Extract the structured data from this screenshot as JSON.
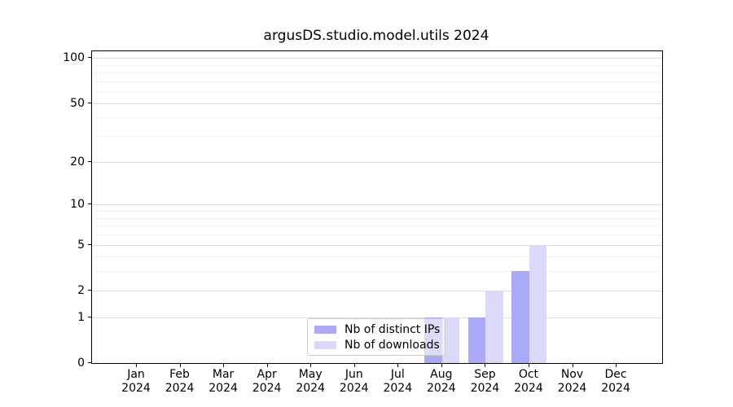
{
  "chart_data": {
    "type": "bar",
    "title": "argusDS.studio.model.utils 2024",
    "categories": [
      "Jan",
      "Feb",
      "Mar",
      "Apr",
      "May",
      "Jun",
      "Jul",
      "Aug",
      "Sep",
      "Oct",
      "Nov",
      "Dec"
    ],
    "x_year_label": "2024",
    "series": [
      {
        "name": "Nb of distinct IPs",
        "color": "#a9a9f7",
        "values": [
          0,
          0,
          0,
          0,
          0,
          0,
          0,
          1,
          1,
          3,
          0,
          0
        ]
      },
      {
        "name": "Nb of downloads",
        "color": "#dadaf8",
        "values": [
          0,
          0,
          0,
          0,
          0,
          0,
          0,
          1,
          2,
          5,
          0,
          0
        ]
      }
    ],
    "yscale": "log1p",
    "ylim": [
      0,
      111
    ],
    "y_tick_labels": [
      100,
      50,
      20,
      10,
      5,
      2,
      1,
      0
    ],
    "y_minor_gridlines": [
      3,
      4,
      6,
      7,
      8,
      9,
      30,
      40,
      60,
      70,
      80,
      90
    ],
    "grid": "horizontal",
    "legend_position": "lower center",
    "colors": {
      "major_grid": "#dcdcdc",
      "minor_grid": "#f2f2f2",
      "spine": "#000000",
      "legend_border": "#cccccc"
    }
  }
}
